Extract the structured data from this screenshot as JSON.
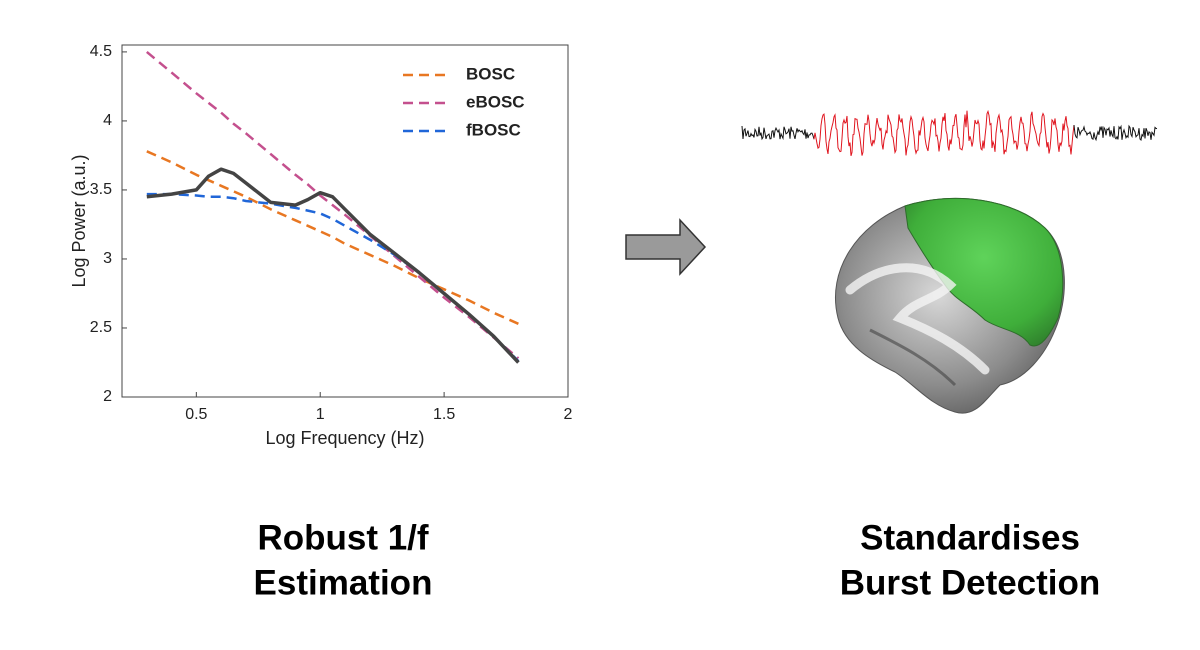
{
  "chart_data": {
    "type": "line",
    "x_label": "Log Frequency (Hz)",
    "y_label": "Log Power (a.u.)",
    "x": [
      0.3,
      0.4,
      0.5,
      0.55,
      0.6,
      0.65,
      0.7,
      0.8,
      0.9,
      0.95,
      1.0,
      1.05,
      1.1,
      1.2,
      1.3,
      1.4,
      1.5,
      1.6,
      1.7,
      1.8
    ],
    "series": [
      {
        "color": "#444444",
        "dashed": false,
        "values": [
          3.45,
          3.47,
          3.5,
          3.6,
          3.65,
          3.62,
          3.55,
          3.41,
          3.39,
          3.43,
          3.48,
          3.45,
          3.36,
          3.18,
          3.04,
          2.9,
          2.75,
          2.6,
          2.44,
          2.25
        ]
      },
      {
        "name": "BOSC",
        "color": "#e87722",
        "dashed": true,
        "values": [
          3.78,
          3.7,
          3.61,
          3.57,
          3.53,
          3.49,
          3.45,
          3.36,
          3.28,
          3.24,
          3.2,
          3.16,
          3.11,
          3.03,
          2.95,
          2.86,
          2.78,
          2.7,
          2.61,
          2.53
        ]
      },
      {
        "name": "eBOSC",
        "color": "#c4508e",
        "dashed": true,
        "values": [
          4.5,
          4.35,
          4.2,
          4.13,
          4.06,
          3.98,
          3.91,
          3.76,
          3.61,
          3.54,
          3.46,
          3.39,
          3.32,
          3.17,
          3.02,
          2.87,
          2.72,
          2.58,
          2.43,
          2.28
        ]
      },
      {
        "name": "fBOSC",
        "color": "#2066d8",
        "dashed": true,
        "values": [
          3.47,
          3.47,
          3.46,
          3.45,
          3.45,
          3.44,
          3.42,
          3.4,
          3.37,
          3.35,
          3.33,
          3.29,
          3.24,
          3.14,
          3.03,
          2.9,
          2.75,
          2.6,
          2.44,
          2.26
        ]
      }
    ],
    "xlim": [
      0.2,
      2.0
    ],
    "xticks": [
      0.5,
      1,
      1.5,
      2
    ],
    "ylim": [
      2,
      4.55
    ],
    "yticks": [
      2,
      2.5,
      3,
      3.5,
      4,
      4.5
    ],
    "grid": false,
    "legend": "upper right"
  },
  "captions": {
    "left": [
      "Robust 1/f",
      "Estimation"
    ],
    "right": [
      "Standardises",
      "Burst Detection"
    ]
  }
}
